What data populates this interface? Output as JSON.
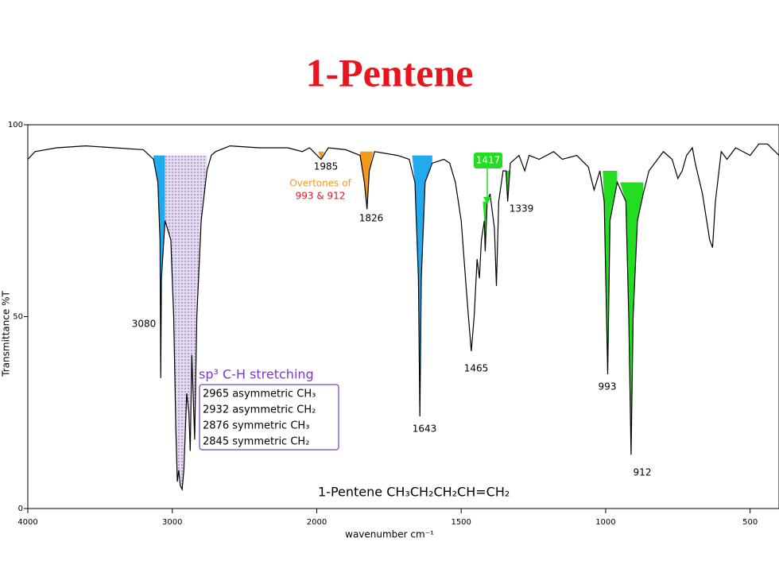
{
  "chart_data": {
    "type": "line",
    "title": "1-Pentene",
    "x_label": "wavenumber cm⁻¹",
    "y_label": "Transmittance %T",
    "xlim": [
      4000,
      400
    ],
    "xbreak": {
      "at": 2000,
      "factor": 2
    },
    "ylim": [
      0,
      100
    ],
    "xticks": [
      4000,
      3000,
      2000,
      1500,
      1000,
      500
    ],
    "yticks": [
      0,
      50,
      100
    ],
    "color": "#000000",
    "x": [
      4000,
      3950,
      3800,
      3600,
      3400,
      3200,
      3130,
      3100,
      3085,
      3080,
      3075,
      3050,
      3010,
      2990,
      2975,
      2965,
      2955,
      2945,
      2932,
      2920,
      2900,
      2885,
      2876,
      2865,
      2845,
      2830,
      2800,
      2760,
      2730,
      2700,
      2600,
      2400,
      2200,
      2100,
      2050,
      1985,
      1960,
      1900,
      1850,
      1835,
      1826,
      1818,
      1800,
      1720,
      1680,
      1660,
      1648,
      1643,
      1638,
      1625,
      1600,
      1560,
      1540,
      1520,
      1500,
      1485,
      1475,
      1465,
      1455,
      1445,
      1437,
      1430,
      1420,
      1417,
      1410,
      1400,
      1385,
      1378,
      1370,
      1355,
      1345,
      1339,
      1330,
      1300,
      1280,
      1265,
      1230,
      1180,
      1150,
      1100,
      1060,
      1040,
      1020,
      1005,
      993,
      985,
      960,
      930,
      920,
      912,
      905,
      890,
      870,
      850,
      800,
      770,
      750,
      735,
      720,
      700,
      690,
      665,
      640,
      630,
      620,
      600,
      580,
      550,
      500,
      470,
      440,
      400
    ],
    "values": [
      91,
      93,
      94,
      94.5,
      94,
      93.5,
      91,
      85,
      70,
      34,
      60,
      75,
      70,
      50,
      20,
      7,
      10,
      6,
      5,
      10,
      30,
      25,
      15,
      40,
      18,
      50,
      75,
      88,
      92,
      93,
      94.5,
      94,
      94,
      93,
      94,
      91,
      94,
      93.5,
      92,
      85,
      78,
      88,
      93,
      92,
      91,
      85,
      60,
      24,
      60,
      85,
      90,
      91,
      90,
      85,
      75,
      60,
      50,
      41,
      50,
      65,
      60,
      70,
      75,
      67,
      80,
      82,
      73,
      58,
      80,
      88,
      88,
      80,
      90,
      92,
      88,
      92,
      91,
      93,
      91,
      92,
      89,
      83,
      88,
      80,
      35,
      75,
      85,
      80,
      50,
      14,
      50,
      75,
      82,
      88,
      93,
      91,
      86,
      88,
      92,
      94,
      90,
      82,
      70,
      68,
      80,
      93,
      91,
      94,
      92,
      95,
      95,
      92
    ],
    "highlights": [
      {
        "from": 3130,
        "to": 3050,
        "level": 92,
        "color": "#22aaee"
      },
      {
        "from": 3050,
        "to": 2760,
        "level": 92,
        "color": "#c8b4e6"
      },
      {
        "from": 1995,
        "to": 1975,
        "level": 93,
        "color": "#f39a1c"
      },
      {
        "from": 1850,
        "to": 1805,
        "level": 93,
        "color": "#f39a1c"
      },
      {
        "from": 1670,
        "to": 1600,
        "level": 92,
        "color": "#22aaee"
      },
      {
        "from": 1425,
        "to": 1410,
        "level": 80,
        "color": "#22dd22"
      },
      {
        "from": 1350,
        "to": 1330,
        "level": 88,
        "color": "#22dd22"
      },
      {
        "from": 1010,
        "to": 960,
        "level": 88,
        "color": "#22dd22"
      },
      {
        "from": 950,
        "to": 870,
        "level": 85,
        "color": "#22dd22"
      }
    ],
    "peak_labels": [
      3080,
      1985,
      1826,
      1417,
      1339,
      1465,
      1643,
      993,
      912
    ],
    "overtones": [
      "Overtones of",
      "993 & 912"
    ],
    "box_title": "sp³ C-H stretching",
    "box_lines": [
      "2965 asymmetric CH₃",
      "2932 asymmetric CH₂",
      "2876 symmetric CH₃",
      "2845 symmetric CH₂"
    ],
    "footer": "1-Pentene  CH₃CH₂CH₂CH=CH₂"
  }
}
